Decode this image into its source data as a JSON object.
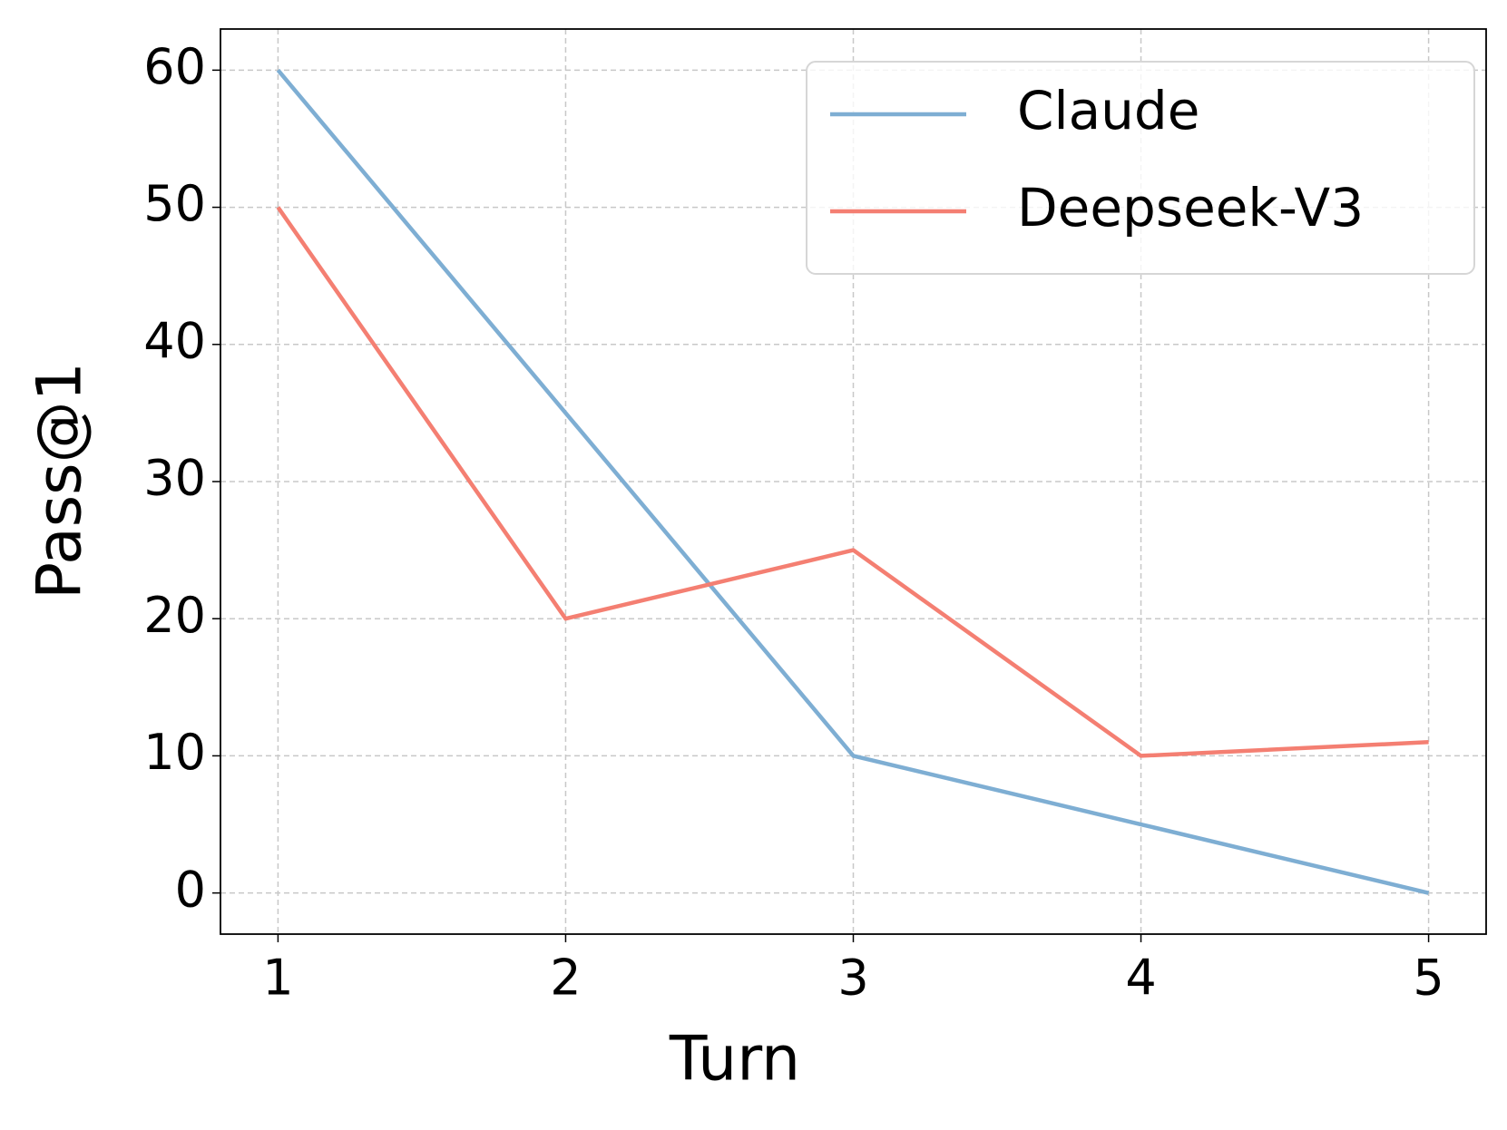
{
  "chart_data": {
    "type": "line",
    "x_label": "Turn",
    "y_label": "Pass@1",
    "x": [
      1,
      2,
      3,
      4,
      5
    ],
    "series": [
      {
        "name": "Claude",
        "color": "#7eaed3",
        "values": [
          60,
          35,
          10,
          5,
          0
        ]
      },
      {
        "name": "Deepseek-V3",
        "color": "#f47f72",
        "values": [
          50,
          20,
          25,
          10,
          11
        ]
      }
    ],
    "xlim": [
      0.8,
      5.2
    ],
    "ylim": [
      -3,
      63
    ],
    "xticks": [
      1,
      2,
      3,
      4,
      5
    ],
    "yticks": [
      0,
      10,
      20,
      30,
      40,
      50,
      60
    ],
    "grid": true,
    "legend": "upper right"
  }
}
